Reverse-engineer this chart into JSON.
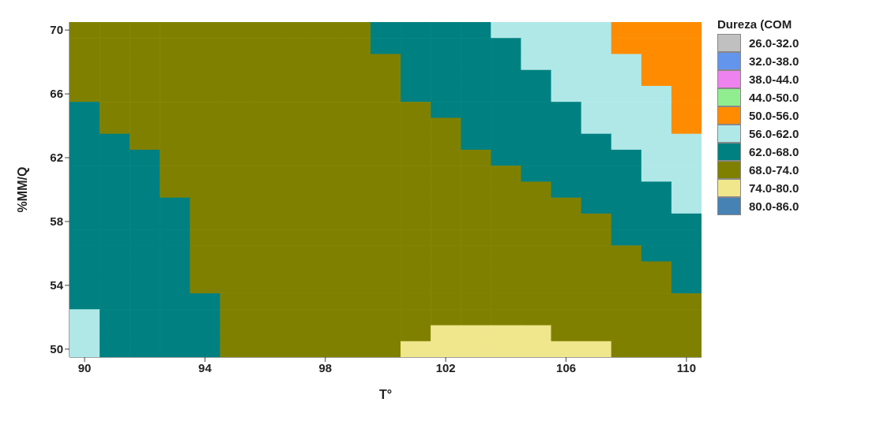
{
  "chart_data": {
    "type": "heatmap",
    "xlabel": "T°",
    "ylabel": "%MM/Q",
    "legend_title": "Dureza (COM",
    "categories": [
      "90",
      null,
      null,
      null,
      "94",
      null,
      null,
      null,
      "98",
      null,
      null,
      null,
      "102",
      null,
      null,
      null,
      "106",
      null,
      null,
      null,
      "110"
    ],
    "y_categories": [
      "70",
      null,
      null,
      null,
      "66",
      null,
      null,
      null,
      "62",
      null,
      null,
      null,
      "58",
      null,
      null,
      null,
      "54",
      null,
      null,
      null,
      "50"
    ],
    "clim": [
      26,
      86
    ],
    "cticks": [
      {
        "value": 29,
        "label": "26.0-32.0"
      },
      {
        "value": 35,
        "label": "32.0-38.0"
      },
      {
        "value": 41,
        "label": "38.0-44.0"
      },
      {
        "value": 47,
        "label": "44.0-50.0"
      },
      {
        "value": 53,
        "label": "50.0-56.0"
      },
      {
        "value": 59,
        "label": "56.0-62.0"
      },
      {
        "value": 65,
        "label": "62.0-68.0"
      },
      {
        "value": 71,
        "label": "68.0-74.0"
      },
      {
        "value": 77,
        "label": "74.0-80.0"
      },
      {
        "value": 83,
        "label": "80.0-86.0"
      }
    ],
    "colors": [
      "#c0c0c0",
      "#6495ed",
      "#ee82ee",
      "#90ee90",
      "#ff8c00",
      "#b0e8e8",
      "#008080",
      "#808000",
      "#f0e68c",
      "#4682b4"
    ],
    "cells": [
      [
        71,
        71,
        71,
        71,
        71,
        71,
        71,
        71,
        71,
        71,
        65,
        65,
        65,
        65,
        59,
        59,
        59,
        59,
        53,
        53,
        53
      ],
      [
        71,
        71,
        71,
        71,
        71,
        71,
        71,
        71,
        71,
        71,
        65,
        65,
        65,
        65,
        65,
        59,
        59,
        59,
        53,
        53,
        53
      ],
      [
        71,
        71,
        71,
        71,
        71,
        71,
        71,
        71,
        71,
        71,
        71,
        65,
        65,
        65,
        65,
        59,
        59,
        59,
        59,
        53,
        53
      ],
      [
        71,
        71,
        71,
        71,
        71,
        71,
        71,
        71,
        71,
        71,
        71,
        65,
        65,
        65,
        65,
        65,
        59,
        59,
        59,
        53,
        53
      ],
      [
        71,
        71,
        71,
        71,
        71,
        71,
        71,
        71,
        71,
        71,
        71,
        65,
        65,
        65,
        65,
        65,
        59,
        59,
        59,
        59,
        53
      ],
      [
        65,
        71,
        71,
        71,
        71,
        71,
        71,
        71,
        71,
        71,
        71,
        71,
        65,
        65,
        65,
        65,
        65,
        59,
        59,
        59,
        53
      ],
      [
        65,
        71,
        71,
        71,
        71,
        71,
        71,
        71,
        71,
        71,
        71,
        71,
        71,
        65,
        65,
        65,
        65,
        59,
        59,
        59,
        53
      ],
      [
        65,
        65,
        71,
        71,
        71,
        71,
        71,
        71,
        71,
        71,
        71,
        71,
        71,
        65,
        65,
        65,
        65,
        65,
        59,
        59,
        59
      ],
      [
        65,
        65,
        65,
        71,
        71,
        71,
        71,
        71,
        71,
        71,
        71,
        71,
        71,
        71,
        65,
        65,
        65,
        65,
        65,
        59,
        59
      ],
      [
        65,
        65,
        65,
        71,
        71,
        71,
        71,
        71,
        71,
        71,
        71,
        71,
        71,
        71,
        71,
        65,
        65,
        65,
        65,
        59,
        59
      ],
      [
        65,
        65,
        65,
        71,
        71,
        71,
        71,
        71,
        71,
        71,
        71,
        71,
        71,
        71,
        71,
        71,
        65,
        65,
        65,
        65,
        59
      ],
      [
        65,
        65,
        65,
        65,
        71,
        71,
        71,
        71,
        71,
        71,
        71,
        71,
        71,
        71,
        71,
        71,
        71,
        65,
        65,
        65,
        59
      ],
      [
        65,
        65,
        65,
        65,
        71,
        71,
        71,
        71,
        71,
        71,
        71,
        71,
        71,
        71,
        71,
        71,
        71,
        71,
        65,
        65,
        65
      ],
      [
        65,
        65,
        65,
        65,
        71,
        71,
        71,
        71,
        71,
        71,
        71,
        71,
        71,
        71,
        71,
        71,
        71,
        71,
        65,
        65,
        65
      ],
      [
        65,
        65,
        65,
        65,
        71,
        71,
        71,
        71,
        71,
        71,
        71,
        71,
        71,
        71,
        71,
        71,
        71,
        71,
        71,
        65,
        65
      ],
      [
        65,
        65,
        65,
        65,
        71,
        71,
        71,
        71,
        71,
        71,
        71,
        71,
        71,
        71,
        71,
        71,
        71,
        71,
        71,
        71,
        65
      ],
      [
        65,
        65,
        65,
        65,
        71,
        71,
        71,
        71,
        71,
        71,
        71,
        71,
        71,
        71,
        71,
        71,
        71,
        71,
        71,
        71,
        65
      ],
      [
        65,
        65,
        65,
        65,
        65,
        71,
        71,
        71,
        71,
        71,
        71,
        71,
        71,
        71,
        71,
        71,
        71,
        71,
        71,
        71,
        71
      ],
      [
        59,
        65,
        65,
        65,
        65,
        71,
        71,
        71,
        71,
        71,
        71,
        71,
        71,
        71,
        71,
        71,
        71,
        71,
        71,
        71,
        71
      ],
      [
        59,
        65,
        65,
        65,
        65,
        71,
        71,
        71,
        71,
        71,
        71,
        71,
        77,
        77,
        77,
        77,
        71,
        71,
        71,
        71,
        71
      ],
      [
        59,
        65,
        65,
        65,
        65,
        71,
        71,
        71,
        71,
        71,
        71,
        77,
        77,
        77,
        77,
        77,
        77,
        77,
        71,
        71,
        71
      ]
    ]
  }
}
